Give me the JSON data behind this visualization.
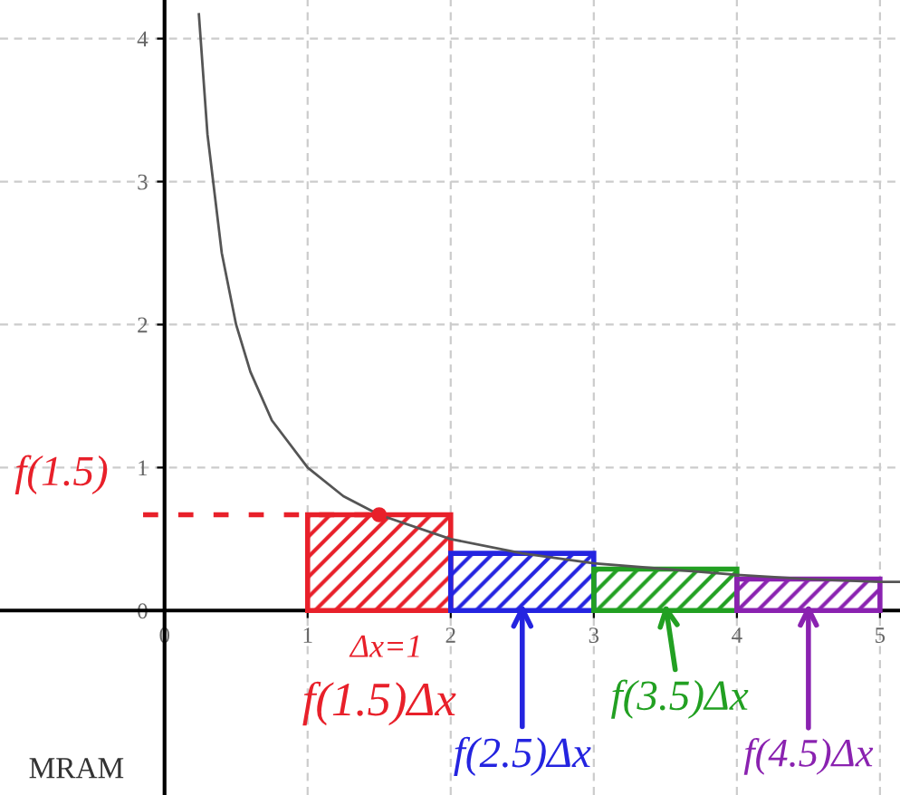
{
  "chart_data": {
    "type": "bar",
    "title": "MRAM",
    "x": [
      1.5,
      2.5,
      3.5,
      4.5
    ],
    "xlim": [
      -1.15,
      5.14
    ],
    "ylim": [
      -1.29,
      4.27
    ],
    "xticks": [
      0,
      1,
      2,
      3,
      4,
      5
    ],
    "yticks": [
      0,
      1,
      2,
      3,
      4
    ],
    "grid": true,
    "series": [
      {
        "colors": [
          "#e8202a",
          "#2424e0",
          "#22a022",
          "#8a22b0"
        ],
        "values": [
          0.67,
          0.4,
          0.29,
          0.22
        ]
      },
      {
        "type": "line",
        "color": "#555555",
        "x": [
          0.24,
          0.3,
          0.4,
          0.5,
          0.6,
          0.75,
          1,
          1.25,
          1.5,
          2,
          2.5,
          3,
          3.5,
          4,
          4.5,
          5,
          5.14
        ],
        "values": [
          4.17,
          3.33,
          2.5,
          2,
          1.67,
          1.33,
          1,
          0.8,
          0.67,
          0.5,
          0.4,
          0.33,
          0.29,
          0.25,
          0.22,
          0.2,
          0.2
        ]
      }
    ],
    "annotations": [
      {
        "text": "f(1.5)",
        "x": 1.5,
        "y": 0.67
      },
      "Δx=1",
      "f(1.5)Δx",
      {
        "text": "f(2.5)Δx",
        "x": 2.5,
        "y": 0.05
      },
      {
        "text": "f(3.5)Δx",
        "x": 3.5,
        "y": 0.05
      },
      {
        "text": "f(4.5)Δx",
        "x": 4.5,
        "y": 0.05
      }
    ]
  }
}
